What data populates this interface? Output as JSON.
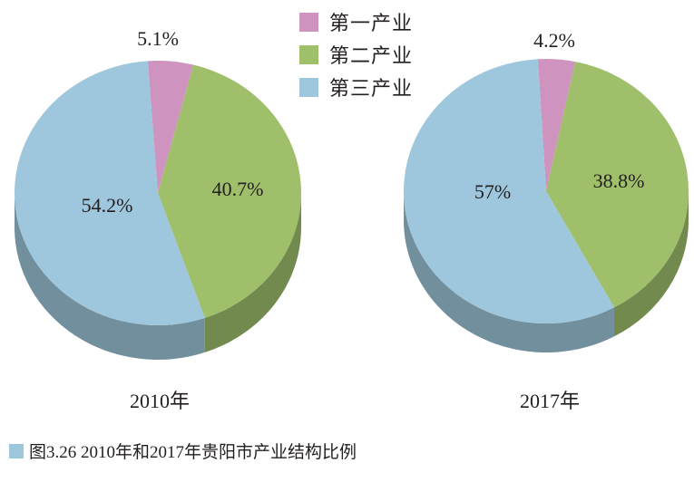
{
  "chart_data": {
    "type": "pie",
    "title": "",
    "legend": {
      "position": "top-center",
      "entries": [
        "第一产业",
        "第二产业",
        "第三产业"
      ]
    },
    "colors": {
      "第一产业": "#cf93bf",
      "第二产业": "#9fbf6b",
      "第三产业": "#9ec6dc"
    },
    "pies": [
      {
        "label": "2010年",
        "slices": [
          {
            "name": "第一产业",
            "value": 5.1,
            "label": "5.1%"
          },
          {
            "name": "第二产业",
            "value": 40.7,
            "label": "40.7%"
          },
          {
            "name": "第三产业",
            "value": 54.2,
            "label": "54.2%"
          }
        ]
      },
      {
        "label": "2017年",
        "slices": [
          {
            "name": "第一产业",
            "value": 4.2,
            "label": "4.2%"
          },
          {
            "name": "第二产业",
            "value": 38.8,
            "label": "38.8%"
          },
          {
            "name": "第三产业",
            "value": 57,
            "label": "57%"
          }
        ]
      }
    ]
  },
  "caption": {
    "marker_color": "#9ec6dc",
    "text": "图3.26   2010年和2017年贵阳市产业结构比例"
  }
}
